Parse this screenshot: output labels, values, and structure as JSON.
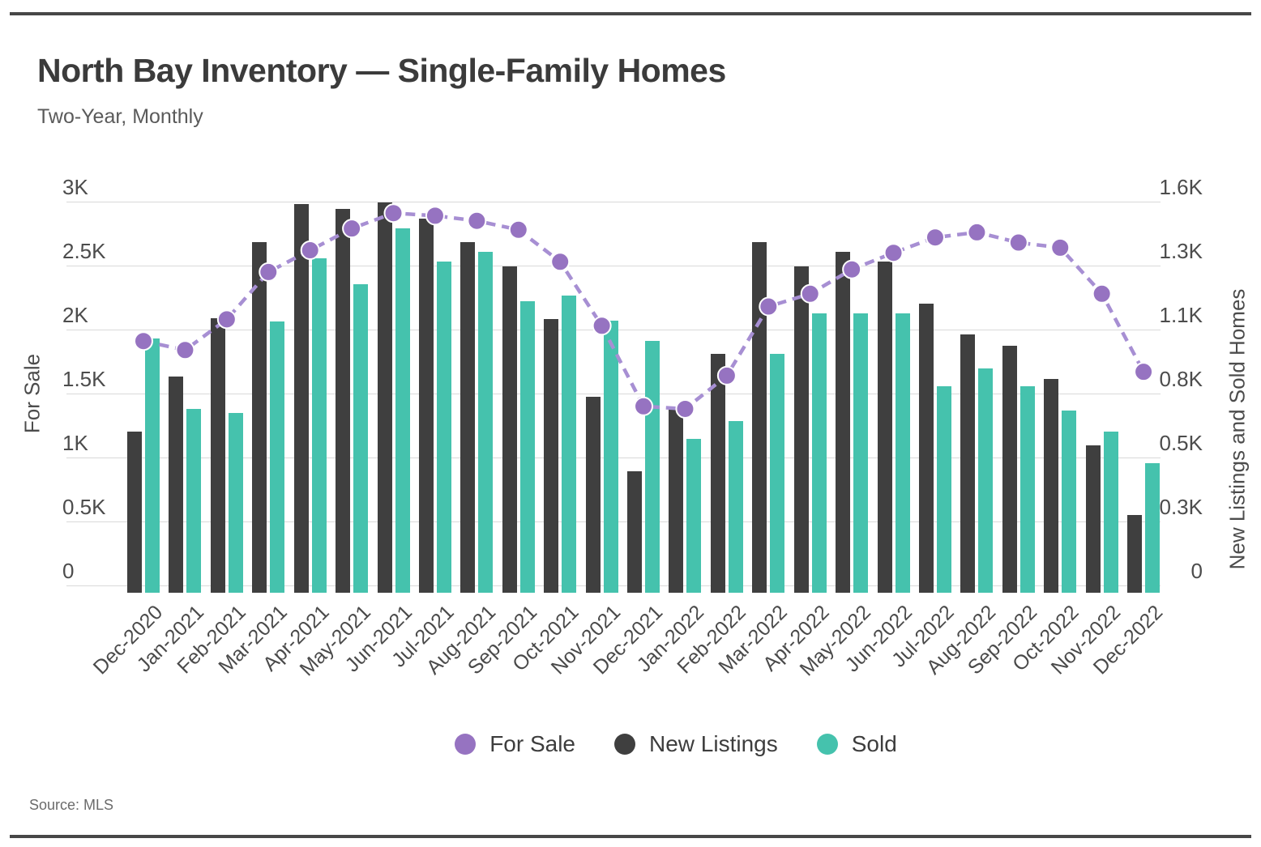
{
  "header": {
    "title": "North Bay Inventory — Single-Family Homes",
    "subtitle": "Two-Year, Monthly"
  },
  "footer": {
    "source": "Source: MLS"
  },
  "legend": [
    {
      "label": "For Sale",
      "color": "#9673c1"
    },
    {
      "label": "New Listings",
      "color": "#3f3f3f"
    },
    {
      "label": "Sold",
      "color": "#45c2ad"
    }
  ],
  "colors": {
    "line": "#a78fd3",
    "line_dot": "#9673c1",
    "bar_new_listings": "#3f3f3f",
    "bar_sold": "#45c2ad",
    "grid": "#d9d9d9"
  },
  "chart_data": {
    "type": "bar",
    "subtype": "dual-axis combo: grouped bars (right axis) + line with dots (left axis)",
    "title": "North Bay Inventory — Single-Family Homes",
    "subtitle": "Two-Year, Monthly",
    "grid": true,
    "legend_position": "bottom",
    "categories": [
      "Dec-2020",
      "Jan-2021",
      "Feb-2021",
      "Mar-2021",
      "Apr-2021",
      "May-2021",
      "Jun-2021",
      "Jul-2021",
      "Aug-2021",
      "Sep-2021",
      "Oct-2021",
      "Nov-2021",
      "Dec-2021",
      "Jan-2022",
      "Feb-2022",
      "Mar-2022",
      "Apr-2022",
      "May-2022",
      "Jun-2022",
      "Jul-2022",
      "Aug-2022",
      "Sep-2022",
      "Oct-2022",
      "Nov-2022",
      "Dec-2022"
    ],
    "series": [
      {
        "name": "For Sale",
        "type": "line",
        "axis": "left",
        "values": [
          1910,
          1840,
          2080,
          2450,
          2620,
          2790,
          2910,
          2890,
          2850,
          2780,
          2530,
          2030,
          1400,
          1380,
          1640,
          2180,
          2280,
          2470,
          2600,
          2720,
          2760,
          2680,
          2640,
          2280,
          1670
        ]
      },
      {
        "name": "New Listings",
        "type": "bar",
        "axis": "right",
        "values": [
          640,
          870,
          1115,
          1430,
          1590,
          1570,
          1595,
          1530,
          1430,
          1330,
          1110,
          785,
          475,
          735,
          965,
          1430,
          1330,
          1390,
          1350,
          1175,
          1045,
          1000,
          860,
          585,
          295
        ]
      },
      {
        "name": "Sold",
        "type": "bar",
        "axis": "right",
        "values": [
          1030,
          735,
          720,
          1100,
          1365,
          1255,
          1490,
          1350,
          1390,
          1185,
          1210,
          1105,
          1020,
          610,
          685,
          965,
          1135,
          1135,
          1135,
          830,
          905,
          830,
          730,
          640,
          510
        ]
      }
    ],
    "left_axis": {
      "label": "For Sale",
      "range": [
        0,
        3000
      ],
      "tick_values": [
        3000,
        2500,
        2000,
        1500,
        1000,
        500,
        0
      ],
      "tick_labels": [
        "3K",
        "2.5K",
        "2K",
        "1.5K",
        "1K",
        "0.5K",
        "0"
      ]
    },
    "right_axis": {
      "label": "New Listings and Sold Homes",
      "range": [
        0,
        1600
      ],
      "tick_labels": [
        "1.6K",
        "1.3K",
        "1.1K",
        "0.8K",
        "0.5K",
        "0.3K",
        "0"
      ]
    }
  }
}
